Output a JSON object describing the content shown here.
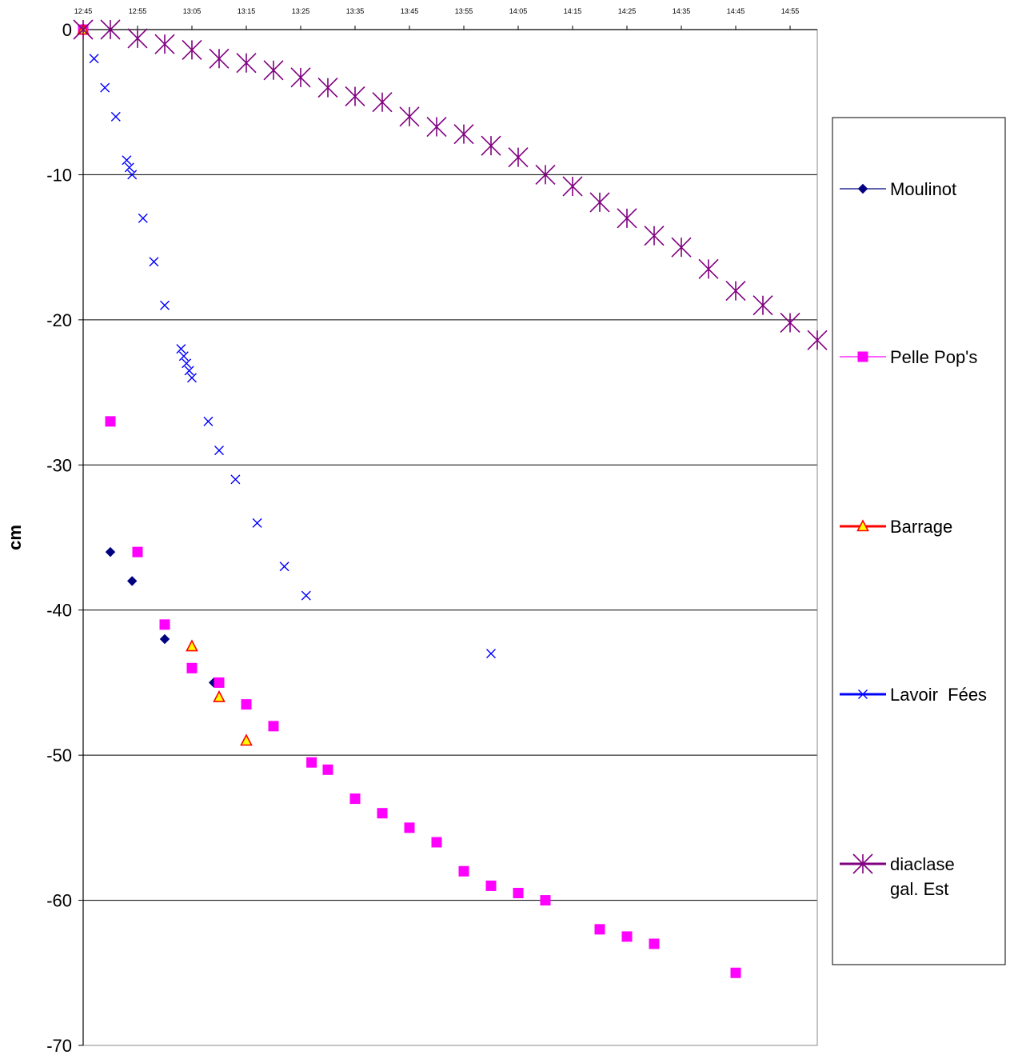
{
  "chart_data": {
    "type": "scatter",
    "title": "",
    "xlabel": "",
    "ylabel": "cm",
    "x_ticks": [
      "12:45",
      "12:55",
      "13:05",
      "13:15",
      "13:25",
      "13:35",
      "13:45",
      "13:55",
      "14:05",
      "14:15",
      "14:25",
      "14:35",
      "14:45",
      "14:55"
    ],
    "x_range": [
      "12:45",
      "15:00"
    ],
    "y_ticks": [
      0,
      -10,
      -20,
      -30,
      -40,
      -50,
      -60,
      -70
    ],
    "ylim": [
      -70,
      0
    ],
    "grid": "horizontal major gridlines",
    "legend_placement": "right",
    "series": [
      {
        "name": "Moulinot",
        "color": "#000080",
        "marker": "diamond",
        "points": [
          [
            "12:45",
            0
          ],
          [
            "12:50",
            -36
          ],
          [
            "12:54",
            -38
          ],
          [
            "13:00",
            -42
          ],
          [
            "13:09",
            -45
          ]
        ]
      },
      {
        "name": "Pelle Pop's",
        "color": "#ff00ff",
        "marker": "square",
        "points": [
          [
            "12:45",
            0
          ],
          [
            "12:50",
            -27
          ],
          [
            "12:55",
            -36
          ],
          [
            "13:00",
            -41
          ],
          [
            "13:05",
            -44
          ],
          [
            "13:10",
            -45
          ],
          [
            "13:15",
            -46.5
          ],
          [
            "13:20",
            -48
          ],
          [
            "13:27",
            -50.5
          ],
          [
            "13:30",
            -51
          ],
          [
            "13:35",
            -53
          ],
          [
            "13:40",
            -54
          ],
          [
            "13:45",
            -55
          ],
          [
            "13:50",
            -56
          ],
          [
            "13:55",
            -58
          ],
          [
            "14:00",
            -59
          ],
          [
            "14:05",
            -59.5
          ],
          [
            "14:10",
            -60
          ],
          [
            "14:20",
            -62
          ],
          [
            "14:25",
            -62.5
          ],
          [
            "14:30",
            -63
          ],
          [
            "14:45",
            -65
          ]
        ]
      },
      {
        "name": "Barrage",
        "color": "#ff0000",
        "marker": "triangle",
        "points": [
          [
            "12:45",
            0
          ],
          [
            "13:05",
            -42.5
          ],
          [
            "13:10",
            -46
          ],
          [
            "13:15",
            -49
          ]
        ]
      },
      {
        "name": "Lavoir  Fées",
        "color": "#0000ff",
        "marker": "x",
        "points": [
          [
            "12:45",
            0
          ],
          [
            "12:47",
            -2
          ],
          [
            "12:49",
            -4
          ],
          [
            "12:51",
            -6
          ],
          [
            "12:53",
            -9
          ],
          [
            "12:53.5",
            -9.5
          ],
          [
            "12:54",
            -10
          ],
          [
            "12:56",
            -13
          ],
          [
            "12:58",
            -16
          ],
          [
            "13:00",
            -19
          ],
          [
            "13:03",
            -22
          ],
          [
            "13:03.5",
            -22.5
          ],
          [
            "13:04",
            -23
          ],
          [
            "13:04.5",
            -23.5
          ],
          [
            "13:05",
            -24
          ],
          [
            "13:08",
            -27
          ],
          [
            "13:10",
            -29
          ],
          [
            "13:13",
            -31
          ],
          [
            "13:17",
            -34
          ],
          [
            "13:22",
            -37
          ],
          [
            "13:26",
            -39
          ],
          [
            "14:00",
            -43
          ]
        ]
      },
      {
        "name": "diaclase gal. Est",
        "color": "#800080",
        "marker": "asterisk",
        "points": [
          [
            "12:45",
            0
          ],
          [
            "12:50",
            0
          ],
          [
            "12:55",
            -0.6
          ],
          [
            "13:00",
            -1
          ],
          [
            "13:05",
            -1.4
          ],
          [
            "13:10",
            -2
          ],
          [
            "13:15",
            -2.3
          ],
          [
            "13:20",
            -2.8
          ],
          [
            "13:25",
            -3.3
          ],
          [
            "13:30",
            -4
          ],
          [
            "13:35",
            -4.6
          ],
          [
            "13:40",
            -5
          ],
          [
            "13:45",
            -6
          ],
          [
            "13:50",
            -6.7
          ],
          [
            "13:55",
            -7.2
          ],
          [
            "14:00",
            -8
          ],
          [
            "14:05",
            -8.8
          ],
          [
            "14:10",
            -10
          ],
          [
            "14:15",
            -10.8
          ],
          [
            "14:20",
            -11.9
          ],
          [
            "14:25",
            -13
          ],
          [
            "14:30",
            -14.2
          ],
          [
            "14:35",
            -15
          ],
          [
            "14:40",
            -16.5
          ],
          [
            "14:45",
            -18
          ],
          [
            "14:50",
            -19
          ],
          [
            "14:55",
            -20.2
          ],
          [
            "15:00",
            -21.4
          ]
        ]
      }
    ]
  },
  "legend": {
    "moulinot": "Moulinot",
    "pelle": "Pelle Pop's",
    "barrage": "Barrage",
    "lavoir": "Lavoir  Fées",
    "diaclase_line1": "diaclase",
    "diaclase_line2": "gal. Est"
  }
}
